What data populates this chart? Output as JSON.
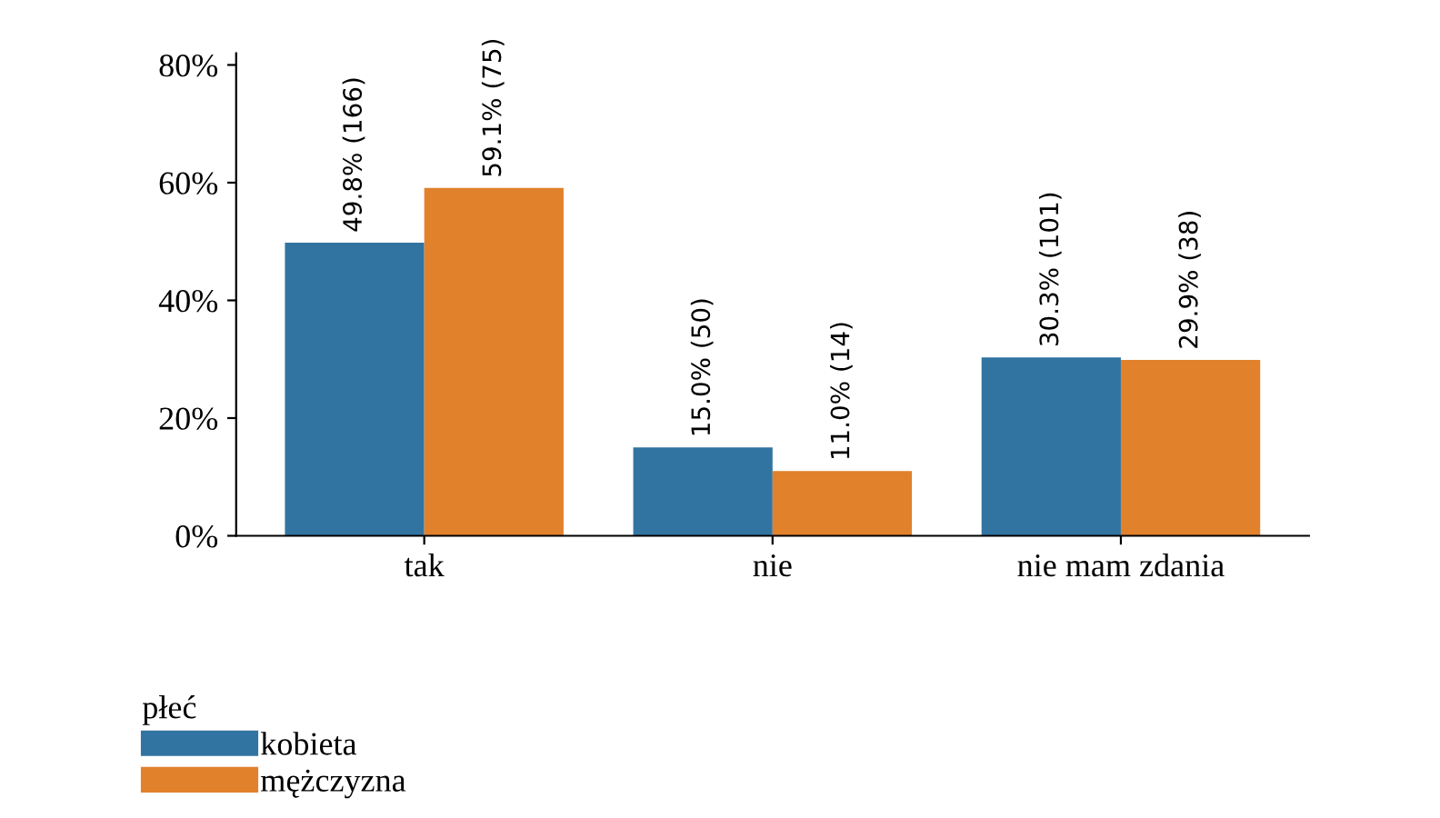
{
  "chart_data": {
    "type": "bar",
    "categories": [
      "tak",
      "nie",
      "nie mam zdania"
    ],
    "series": [
      {
        "name": "kobieta",
        "color": "#3274a1",
        "values": [
          49.8,
          15.0,
          30.3
        ],
        "value_labels": [
          "49.8% (166)",
          "15.0% (50)",
          "30.3% (101)"
        ]
      },
      {
        "name": "mężczyzna",
        "color": "#e1812c",
        "values": [
          59.1,
          11.0,
          29.9
        ],
        "value_labels": [
          "59.1% (75)",
          "11.0% (14)",
          "29.9% (38)"
        ]
      }
    ],
    "ylim": [
      0,
      82
    ],
    "yticks": [
      {
        "value": 0,
        "label": "0%"
      },
      {
        "value": 20,
        "label": "20%"
      },
      {
        "value": 40,
        "label": "40%"
      },
      {
        "value": 60,
        "label": "60%"
      },
      {
        "value": 80,
        "label": "80%"
      }
    ],
    "legend_title": "płeć",
    "legend": "bottom left",
    "grid": false
  }
}
